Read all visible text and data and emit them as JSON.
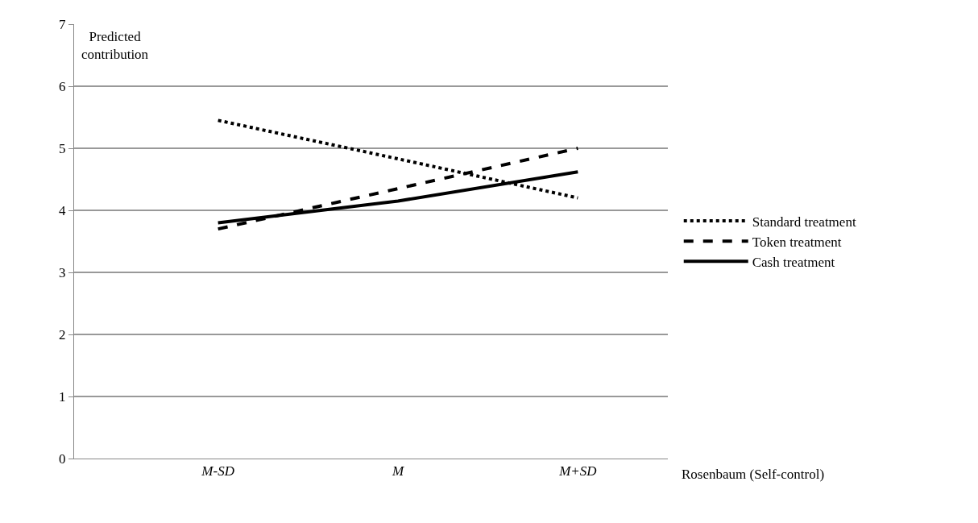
{
  "chart_data": {
    "type": "line",
    "ylabel": "Predicted contribution",
    "xlabel": "Rosenbaum (Self-control)",
    "categories": [
      "M-SD",
      "M",
      "M+SD"
    ],
    "series": [
      {
        "name": "Standard treatment",
        "color": "#000000",
        "line_style": "dotted",
        "values": [
          5.45,
          4.83,
          4.2
        ]
      },
      {
        "name": "Token treatment",
        "color": "#000000",
        "line_style": "dashed",
        "values": [
          3.7,
          4.35,
          5.0
        ]
      },
      {
        "name": "Cash treatment",
        "color": "#000000",
        "line_style": "solid",
        "values": [
          3.8,
          4.15,
          4.62
        ]
      }
    ],
    "ylim": [
      0,
      7
    ],
    "yticks": [
      0,
      1,
      2,
      3,
      4,
      5,
      6,
      7
    ],
    "grid": "y",
    "legend": "right",
    "marker": "none"
  }
}
